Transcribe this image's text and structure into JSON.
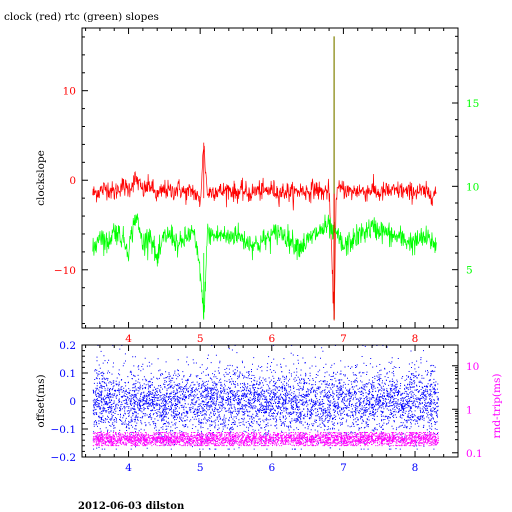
{
  "chart_data": [
    {
      "type": "line",
      "title": "clock (red) rtc (green) slopes",
      "xlabel": "",
      "ylabel": "clockslope",
      "ylabel_right": "",
      "xlim": [
        3.35,
        8.6
      ],
      "ylim": [
        -16.5,
        17
      ],
      "ylim_right": [
        1.5,
        19.5
      ],
      "x_ticks": [
        4,
        5,
        6,
        7,
        8
      ],
      "y_ticks": [
        -10,
        0,
        10
      ],
      "y_ticks_right": [
        5,
        10,
        15
      ],
      "grid": false,
      "colors": {
        "clock": "#ff0000",
        "rtc": "#00ff00",
        "spike": "#808000",
        "axes": "#000000",
        "xticks": "#ff0000",
        "yticks": "#ff0000",
        "yticks_right": "#00ff00"
      },
      "series": [
        {
          "name": "clock",
          "axis": "left",
          "x": [
            3.5,
            3.6,
            3.7,
            3.8,
            3.9,
            4.0,
            4.1,
            4.2,
            4.3,
            4.4,
            4.5,
            4.6,
            4.7,
            4.8,
            4.9,
            5.0,
            5.05,
            5.1,
            5.2,
            5.3,
            5.4,
            5.5,
            5.6,
            5.7,
            5.8,
            5.9,
            6.0,
            6.1,
            6.2,
            6.3,
            6.4,
            6.5,
            6.6,
            6.7,
            6.8,
            6.87,
            6.9,
            7.0,
            7.1,
            7.2,
            7.3,
            7.4,
            7.5,
            7.6,
            7.7,
            7.8,
            7.9,
            8.0,
            8.1,
            8.2,
            8.3
          ],
          "values": [
            -1.5,
            -1.2,
            -0.8,
            -1.4,
            -0.6,
            -1.0,
            0.2,
            -1.2,
            -0.5,
            -1.8,
            -1.0,
            -1.3,
            -0.9,
            -1.5,
            -1.1,
            -2.5,
            4.0,
            -1.5,
            -1.1,
            -1.3,
            -1.0,
            -1.4,
            -1.2,
            -1.5,
            -1.1,
            -1.3,
            -1.0,
            -1.4,
            -1.2,
            -1.5,
            -1.1,
            -1.3,
            -0.9,
            -1.4,
            -1.1,
            -15.5,
            -1.2,
            -0.9,
            -1.4,
            -1.1,
            -1.3,
            -1.0,
            -1.5,
            -1.2,
            -1.3,
            -1.1,
            -1.4,
            -1.2,
            -1.3,
            -1.5,
            -1.4
          ]
        },
        {
          "name": "rtc",
          "axis": "right",
          "x": [
            3.5,
            3.6,
            3.7,
            3.8,
            3.9,
            4.0,
            4.1,
            4.2,
            4.3,
            4.4,
            4.5,
            4.6,
            4.7,
            4.8,
            4.9,
            5.0,
            5.05,
            5.1,
            5.2,
            5.3,
            5.4,
            5.5,
            5.6,
            5.7,
            5.8,
            5.9,
            6.0,
            6.1,
            6.2,
            6.3,
            6.4,
            6.5,
            6.6,
            6.7,
            6.8,
            6.87,
            6.9,
            7.0,
            7.1,
            7.2,
            7.3,
            7.4,
            7.5,
            7.6,
            7.7,
            7.8,
            7.9,
            8.0,
            8.1,
            8.2,
            8.3
          ],
          "values": [
            6.0,
            7.2,
            6.5,
            7.4,
            7.0,
            6.2,
            8.3,
            6.5,
            7.2,
            5.5,
            7.0,
            7.1,
            6.4,
            6.9,
            7.3,
            5.0,
            2.0,
            7.2,
            7.0,
            7.1,
            6.9,
            7.2,
            6.8,
            6.6,
            6.5,
            6.8,
            7.0,
            7.3,
            7.0,
            6.6,
            6.4,
            6.7,
            7.1,
            7.4,
            7.6,
            7.0,
            7.2,
            6.3,
            6.7,
            7.0,
            7.3,
            7.5,
            7.4,
            7.2,
            7.0,
            6.9,
            6.7,
            6.6,
            6.9,
            6.8,
            6.5
          ]
        },
        {
          "name": "",
          "axis": "right",
          "x": [
            6.87,
            6.87
          ],
          "values": [
            2.0,
            19.0
          ]
        }
      ]
    },
    {
      "type": "scatter",
      "title": "",
      "xlabel": "",
      "ylabel": "offset(ms)",
      "ylabel_right": "rnd-trip(ms)",
      "xlim": [
        3.35,
        8.6
      ],
      "ylim": [
        -0.2,
        0.2
      ],
      "ylim_right": [
        0.08,
        30
      ],
      "y_right_scale": "log",
      "x_ticks": [
        4,
        5,
        6,
        7,
        8
      ],
      "y_ticks": [
        -0.2,
        -0.1,
        0,
        0.1,
        0.2
      ],
      "y_tick_labels": [
        "−0.2",
        "−0.1",
        "0",
        "0.1",
        "0.2"
      ],
      "y_ticks_right": [
        0.1,
        1,
        10
      ],
      "grid": false,
      "colors": {
        "offset": "#0000ff",
        "rnd_trip": "#ff00ff",
        "axes": "#000000",
        "xticks": "#0000ff",
        "yticks": "#0000ff",
        "yticks_right": "#ff00ff"
      },
      "series": [
        {
          "name": "offset",
          "axis": "left",
          "x_range": [
            3.5,
            8.32
          ],
          "mean": 0.0,
          "spread": 0.055,
          "max": 0.2,
          "min": -0.17,
          "approx_points": 5000
        },
        {
          "name": "rnd-trip",
          "axis": "right",
          "x_range": [
            3.5,
            8.32
          ],
          "mean": 0.2,
          "low": 0.15,
          "high": 0.3,
          "approx_points": 3500
        }
      ]
    }
  ],
  "footer": {
    "text": "2012-06-03 dilston"
  }
}
